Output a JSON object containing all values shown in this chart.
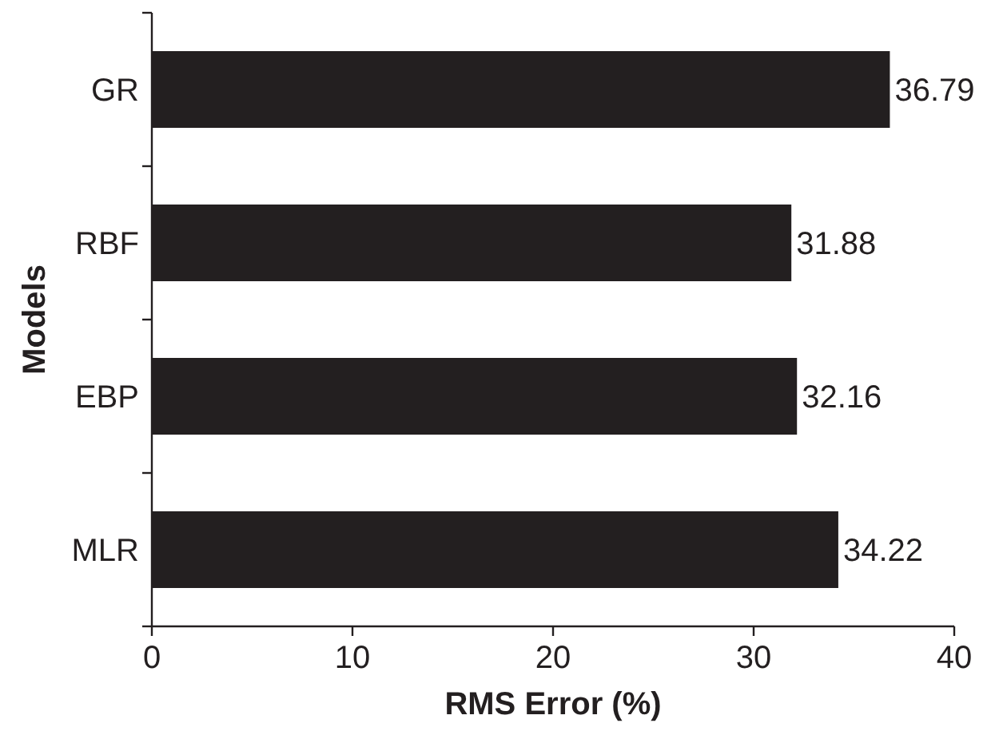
{
  "chart_data": {
    "type": "bar",
    "orientation": "horizontal",
    "xlabel": "RMS Error (%)",
    "ylabel": "Models",
    "categories": [
      "GR",
      "RBF",
      "EBP",
      "MLR"
    ],
    "values": [
      36.79,
      31.88,
      32.16,
      34.22
    ],
    "color": "#231f20",
    "data_labels": true,
    "xlim": [
      0,
      40
    ],
    "xticks": [
      0,
      10,
      20,
      30,
      40
    ],
    "grid": false
  }
}
